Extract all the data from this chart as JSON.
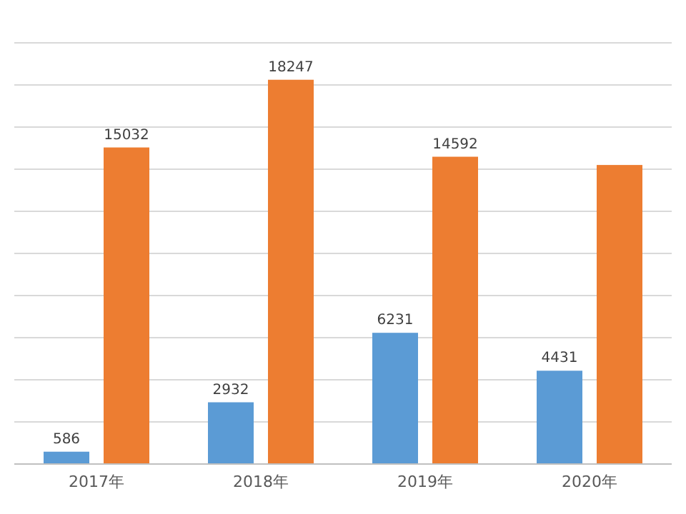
{
  "chart_data": {
    "type": "bar",
    "categories": [
      "2017年",
      "2018年",
      "2019年",
      "2020年"
    ],
    "series": [
      {
        "color": "#5b9bd5",
        "values": [
          586,
          2932,
          6231,
          4431
        ],
        "value_labels": [
          "586",
          "2932",
          "6231",
          "4431"
        ]
      },
      {
        "color": "#ed7d31",
        "values": [
          15032,
          18247,
          14592,
          14200
        ],
        "value_labels": [
          "15032",
          "18247",
          "14592",
          null
        ]
      }
    ],
    "ylim": [
      0,
      20000
    ],
    "yticks": [
      {
        "value": 0,
        "label": null
      },
      {
        "value": 2000,
        "label": null
      },
      {
        "value": 4000,
        "label": null
      },
      {
        "value": 6000,
        "label": null
      },
      {
        "value": 8000,
        "label": null
      },
      {
        "value": 10000,
        "label": null
      },
      {
        "value": 12000,
        "label": null
      },
      {
        "value": 14000,
        "label": null
      },
      {
        "value": 16000,
        "label": null
      },
      {
        "value": 18000,
        "label": null
      },
      {
        "value": 20000,
        "label": null
      }
    ],
    "grid": "y",
    "tick_labels": "x"
  }
}
